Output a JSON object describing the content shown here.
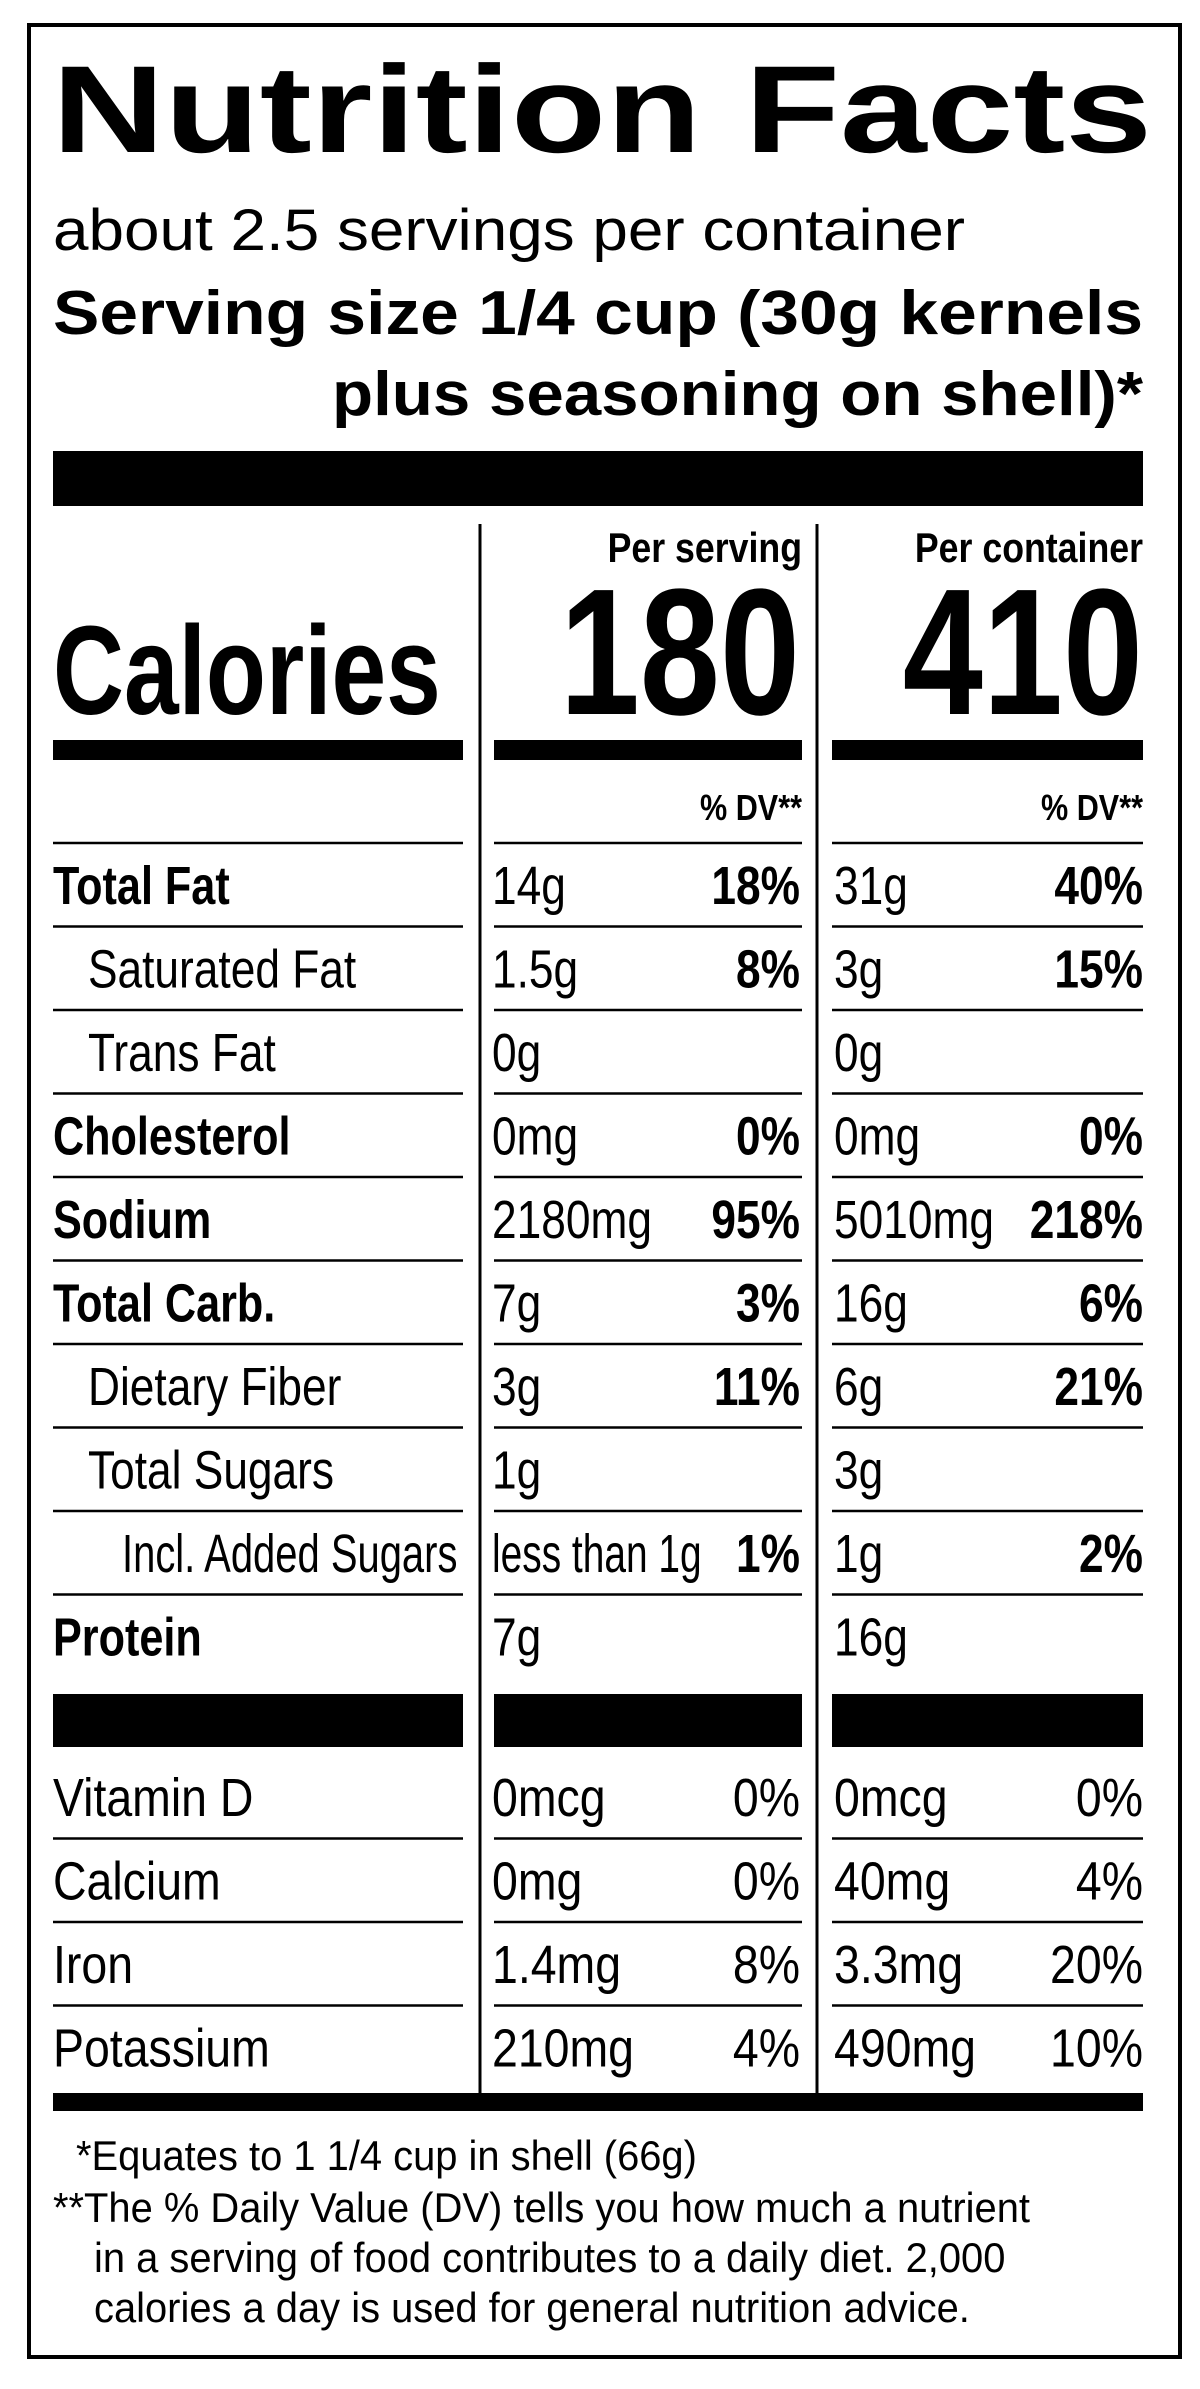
{
  "header": {
    "title": "Nutrition Facts",
    "servings": "about 2.5 servings per container",
    "serving_size_line1": "Serving size  1/4 cup (30g kernels",
    "serving_size_line2": "plus seasoning on shell)*"
  },
  "columns": {
    "per_serving": "Per serving",
    "per_container": "Per container"
  },
  "calories": {
    "label": "Calories",
    "per_serving": "180",
    "per_container": "410"
  },
  "dv_header": {
    "per_serving": "% DV**",
    "per_container": "% DV**"
  },
  "nutrients": [
    {
      "name": "Total Fat",
      "serving": {
        "amount": "14g",
        "dv": "18%"
      },
      "container": {
        "amount": "31g",
        "dv": "40%"
      }
    },
    {
      "name": "Saturated Fat",
      "serving": {
        "amount": "1.5g",
        "dv": "8%"
      },
      "container": {
        "amount": "3g",
        "dv": "15%"
      }
    },
    {
      "name": "Trans Fat",
      "serving": {
        "amount": "0g"
      },
      "container": {
        "amount": "0g"
      }
    },
    {
      "name": "Cholesterol",
      "serving": {
        "amount": "0mg",
        "dv": "0%"
      },
      "container": {
        "amount": "0mg",
        "dv": "0%"
      }
    },
    {
      "name": "Sodium",
      "serving": {
        "amount": "2180mg",
        "dv": "95%"
      },
      "container": {
        "amount": "5010mg",
        "dv": "218%"
      }
    },
    {
      "name": "Total Carb.",
      "serving": {
        "amount": "7g",
        "dv": "3%"
      },
      "container": {
        "amount": "16g",
        "dv": "6%"
      }
    },
    {
      "name": "Dietary Fiber",
      "serving": {
        "amount": "3g",
        "dv": "11%"
      },
      "container": {
        "amount": "6g",
        "dv": "21%"
      }
    },
    {
      "name": "Total Sugars",
      "serving": {
        "amount": "1g"
      },
      "container": {
        "amount": "3g"
      }
    },
    {
      "name": "Incl. Added Sugars",
      "serving": {
        "amount": "less than 1g",
        "dv": "1%"
      },
      "container": {
        "amount": "1g",
        "dv": "2%"
      }
    },
    {
      "name": "Protein",
      "serving": {
        "amount": "7g"
      },
      "container": {
        "amount": "16g"
      }
    }
  ],
  "vitamins": [
    {
      "name": "Vitamin D",
      "serving": {
        "amount": "0mcg",
        "dv": "0%"
      },
      "container": {
        "amount": "0mcg",
        "dv": "0%"
      }
    },
    {
      "name": "Calcium",
      "serving": {
        "amount": "0mg",
        "dv": "0%"
      },
      "container": {
        "amount": "40mg",
        "dv": "4%"
      }
    },
    {
      "name": "Iron",
      "serving": {
        "amount": "1.4mg",
        "dv": "8%"
      },
      "container": {
        "amount": "3.3mg",
        "dv": "20%"
      }
    },
    {
      "name": "Potassium",
      "serving": {
        "amount": "210mg",
        "dv": "4%"
      },
      "container": {
        "amount": "490mg",
        "dv": "10%"
      }
    }
  ],
  "footnotes": [
    "*Equates to 1 1/4 cup in shell (66g)",
    "**The % Daily Value (DV) tells you how much a nutrient",
    "in a serving of food contributes to a daily diet. 2,000",
    "calories a day is used for general nutrition advice."
  ]
}
